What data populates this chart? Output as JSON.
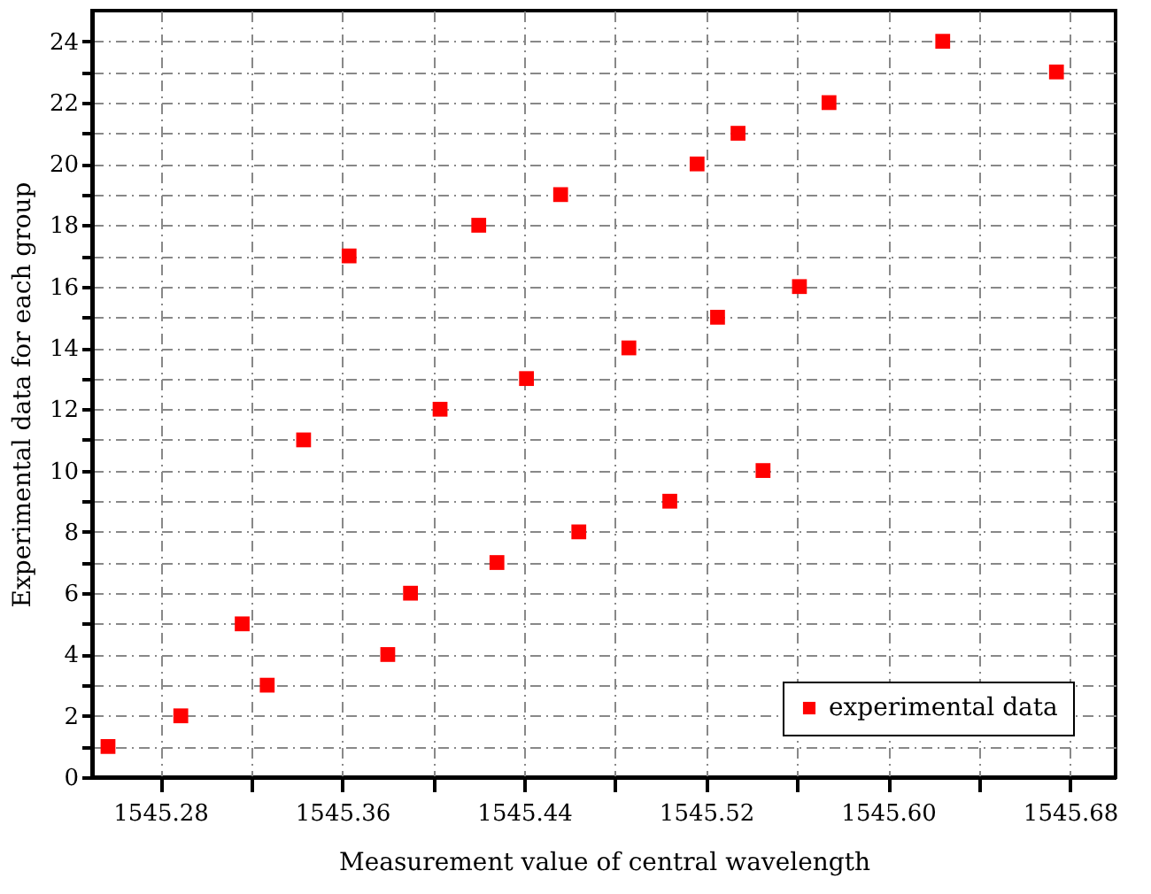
{
  "chart_data": {
    "type": "scatter",
    "xlabel": "Measurement value of central wavelength",
    "ylabel": "Experimental data for each group",
    "x": [
      1545.257,
      1545.289,
      1545.327,
      1545.38,
      1545.316,
      1545.39,
      1545.428,
      1545.464,
      1545.504,
      1545.545,
      1545.343,
      1545.403,
      1545.441,
      1545.486,
      1545.525,
      1545.561,
      1545.363,
      1545.42,
      1545.456,
      1545.516,
      1545.534,
      1545.574,
      1545.674,
      1545.624
    ],
    "series": [
      {
        "name": "experimental data",
        "color": "#ff0000",
        "values": [
          1,
          2,
          3,
          4,
          5,
          6,
          7,
          8,
          9,
          10,
          11,
          12,
          13,
          14,
          15,
          16,
          17,
          18,
          19,
          20,
          21,
          22,
          23,
          24
        ]
      }
    ],
    "xlim": [
      1545.25,
      1545.7
    ],
    "xticks": [
      1545.28,
      {
        "value": 1545.32,
        "label": null
      },
      1545.36,
      {
        "value": 1545.4,
        "label": null
      },
      1545.44,
      {
        "value": 1545.48,
        "label": null
      },
      1545.52,
      {
        "value": 1545.56,
        "label": null
      },
      {
        "value": 1545.6,
        "label": "1545.60"
      },
      {
        "value": 1545.64,
        "label": null
      },
      1545.68
    ],
    "ylim": [
      0,
      25
    ],
    "yticks": [
      0,
      {
        "value": 1,
        "label": null
      },
      2,
      {
        "value": 3,
        "label": null
      },
      4,
      {
        "value": 5,
        "label": null
      },
      6,
      {
        "value": 7,
        "label": null
      },
      8,
      {
        "value": 9,
        "label": null
      },
      10,
      {
        "value": 11,
        "label": null
      },
      12,
      {
        "value": 13,
        "label": null
      },
      14,
      {
        "value": 15,
        "label": null
      },
      16,
      {
        "value": 17,
        "label": null
      },
      18,
      {
        "value": 19,
        "label": null
      },
      20,
      {
        "value": 21,
        "label": null
      },
      22,
      {
        "value": 23,
        "label": null
      },
      24
    ],
    "grid": true,
    "legend": "bottom right",
    "marker": "square"
  }
}
